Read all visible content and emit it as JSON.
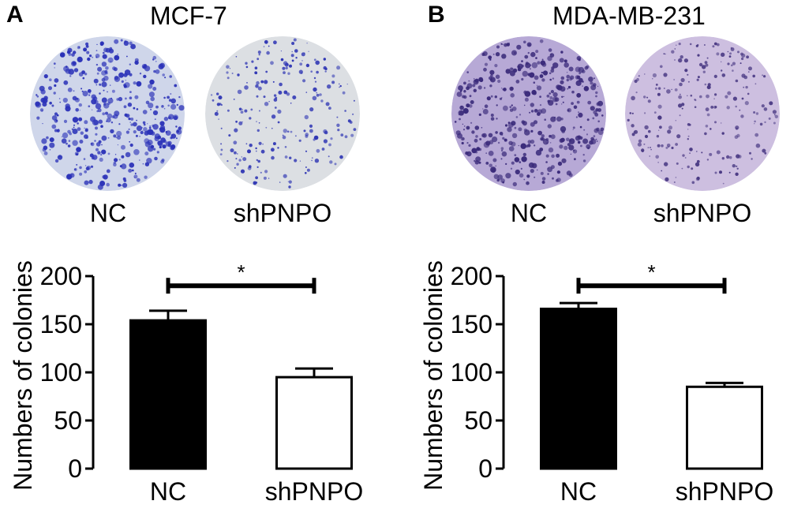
{
  "panels": [
    {
      "letter": "A",
      "title": "MCF-7",
      "dishes": [
        {
          "label": "NC",
          "colony_color": "#2b32b8",
          "background_color": "#cfd6ea",
          "density": "high"
        },
        {
          "label": "shPNPO",
          "colony_color": "#2f36b4",
          "background_color": "#dcdfe3",
          "density": "low"
        }
      ]
    },
    {
      "letter": "B",
      "title": "MDA-MB-231",
      "dishes": [
        {
          "label": "NC",
          "colony_color": "#3a2a7a",
          "background_color": "#b7a9d6",
          "density": "high"
        },
        {
          "label": "shPNPO",
          "colony_color": "#4a3a84",
          "background_color": "#cdbfe0",
          "density": "low"
        }
      ]
    }
  ],
  "chart_data": [
    {
      "type": "bar",
      "categories": [
        "NC",
        "shPNPO"
      ],
      "values": [
        154,
        95
      ],
      "errors": [
        10,
        9
      ],
      "bar_fill": [
        "#000000",
        "#ffffff"
      ],
      "ylabel": "Numbers of colonies",
      "ylim": [
        0,
        200
      ],
      "yticks": [
        0,
        50,
        100,
        150,
        200
      ],
      "significance": {
        "from": "NC",
        "to": "shPNPO",
        "label": "*",
        "y": 190
      }
    },
    {
      "type": "bar",
      "categories": [
        "NC",
        "shPNPO"
      ],
      "values": [
        166,
        85
      ],
      "errors": [
        6,
        4
      ],
      "bar_fill": [
        "#000000",
        "#ffffff"
      ],
      "ylabel": "Numbers of colonies",
      "ylim": [
        0,
        200
      ],
      "yticks": [
        0,
        50,
        100,
        150,
        200
      ],
      "significance": {
        "from": "NC",
        "to": "shPNPO",
        "label": "*",
        "y": 190
      }
    }
  ]
}
